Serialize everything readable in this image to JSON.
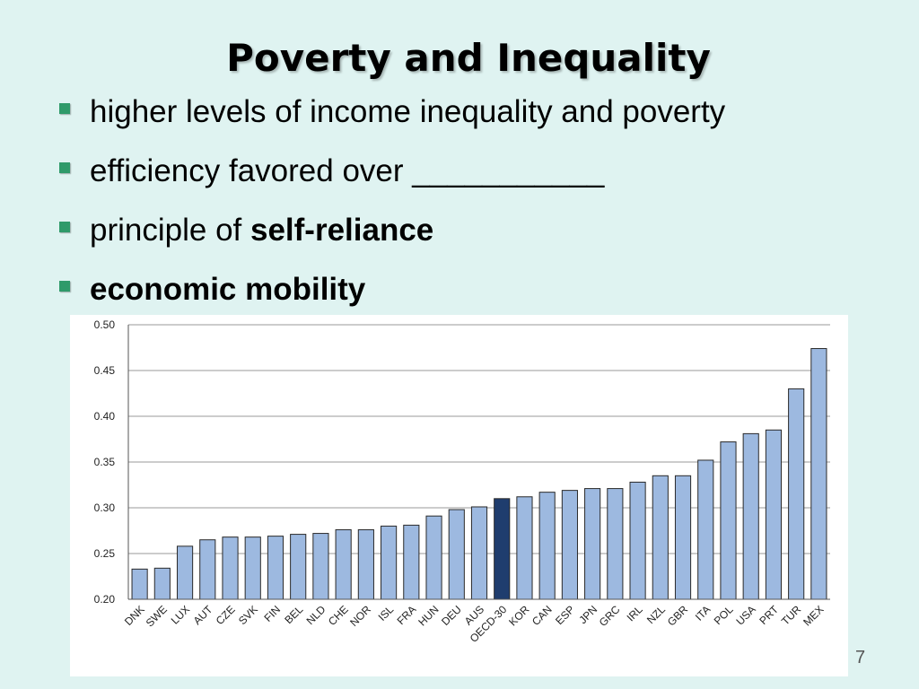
{
  "slide": {
    "title": "Poverty and Inequality",
    "bullets": [
      {
        "parts": [
          {
            "text": "higher levels of income inequality and poverty",
            "bold": false
          }
        ]
      },
      {
        "parts": [
          {
            "text": "efficiency favored over ___________",
            "bold": false
          }
        ]
      },
      {
        "parts": [
          {
            "text": "principle of ",
            "bold": false
          },
          {
            "text": "self-reliance",
            "bold": true
          }
        ]
      },
      {
        "parts": [
          {
            "text": "economic mobility",
            "bold": true
          }
        ]
      }
    ],
    "page_number": "7",
    "colors": {
      "background": "#dff3f1",
      "bullet": "#2f9a6a",
      "bar": "#9db9e0",
      "bar_highlight": "#1f3d6e",
      "bar_border": "#2a2a2a"
    }
  },
  "chart_data": {
    "type": "bar",
    "title": "",
    "xlabel": "",
    "ylabel": "",
    "ylim": [
      0.2,
      0.5
    ],
    "yticks": [
      "0.50",
      "0.45",
      "0.40",
      "0.35",
      "0.30",
      "0.25",
      "0.20"
    ],
    "grid": true,
    "categories": [
      "DNK",
      "SWE",
      "LUX",
      "AUT",
      "CZE",
      "SVK",
      "FIN",
      "BEL",
      "NLD",
      "CHE",
      "NOR",
      "ISL",
      "FRA",
      "HUN",
      "DEU",
      "AUS",
      "OECD-30",
      "KOR",
      "CAN",
      "ESP",
      "JPN",
      "GRC",
      "IRL",
      "NZL",
      "GBR",
      "ITA",
      "POL",
      "USA",
      "PRT",
      "TUR",
      "MEX"
    ],
    "values": [
      0.233,
      0.234,
      0.258,
      0.265,
      0.268,
      0.268,
      0.269,
      0.271,
      0.272,
      0.276,
      0.276,
      0.28,
      0.281,
      0.291,
      0.298,
      0.301,
      0.31,
      0.312,
      0.317,
      0.319,
      0.321,
      0.321,
      0.328,
      0.335,
      0.335,
      0.352,
      0.372,
      0.381,
      0.385,
      0.43,
      0.474
    ],
    "highlight": [
      "OECD-30"
    ]
  }
}
